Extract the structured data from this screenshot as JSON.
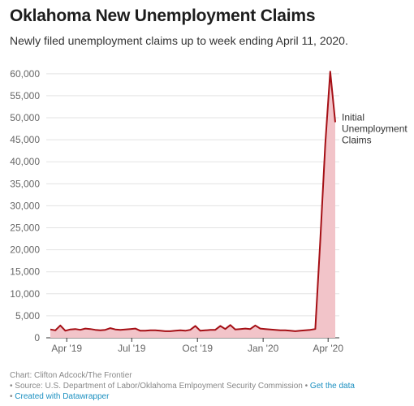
{
  "header": {
    "title": "Oklahoma New Unemployment Claims",
    "subtitle": "Newly filed unemployment claims up to week ending April 11, 2020."
  },
  "chart_data": {
    "type": "area",
    "title": "Oklahoma New Unemployment Claims",
    "subtitle": "Newly filed unemployment claims up to week ending April 11, 2020.",
    "xlabel": "",
    "ylabel": "",
    "ylim": [
      0,
      62000
    ],
    "yticks": [
      0,
      5000,
      10000,
      15000,
      20000,
      25000,
      30000,
      35000,
      40000,
      45000,
      50000,
      55000,
      60000
    ],
    "ytick_labels": [
      "0",
      "5,000",
      "10,000",
      "15,000",
      "20,000",
      "25,000",
      "30,000",
      "35,000",
      "40,000",
      "45,000",
      "50,000",
      "55,000",
      "60,000"
    ],
    "xticks": [
      {
        "date": "2019-04-01",
        "label": "Apr '19"
      },
      {
        "date": "2019-07-01",
        "label": "Jul '19"
      },
      {
        "date": "2019-10-01",
        "label": "Oct '19"
      },
      {
        "date": "2020-01-01",
        "label": "Jan '20"
      },
      {
        "date": "2020-04-01",
        "label": "Apr '20"
      }
    ],
    "grid": true,
    "series": [
      {
        "name": "Initial Unemployment Claims",
        "color": "#a50f15",
        "fill": "#f2c4c9",
        "x": [
          "2019-03-09",
          "2019-03-16",
          "2019-03-23",
          "2019-03-30",
          "2019-04-06",
          "2019-04-13",
          "2019-04-20",
          "2019-04-27",
          "2019-05-04",
          "2019-05-11",
          "2019-05-18",
          "2019-05-25",
          "2019-06-01",
          "2019-06-08",
          "2019-06-15",
          "2019-06-22",
          "2019-06-29",
          "2019-07-06",
          "2019-07-13",
          "2019-07-20",
          "2019-07-27",
          "2019-08-03",
          "2019-08-10",
          "2019-08-17",
          "2019-08-24",
          "2019-08-31",
          "2019-09-07",
          "2019-09-14",
          "2019-09-21",
          "2019-09-28",
          "2019-10-05",
          "2019-10-12",
          "2019-10-19",
          "2019-10-26",
          "2019-11-02",
          "2019-11-09",
          "2019-11-16",
          "2019-11-23",
          "2019-11-30",
          "2019-12-07",
          "2019-12-14",
          "2019-12-21",
          "2019-12-28",
          "2020-01-04",
          "2020-01-11",
          "2020-01-18",
          "2020-01-25",
          "2020-02-01",
          "2020-02-08",
          "2020-02-15",
          "2020-02-22",
          "2020-02-29",
          "2020-03-07",
          "2020-03-14",
          "2020-03-21",
          "2020-03-28",
          "2020-04-04",
          "2020-04-11"
        ],
        "values": [
          1900,
          1700,
          2800,
          1600,
          1900,
          2000,
          1800,
          2100,
          2000,
          1800,
          1700,
          1800,
          2200,
          1900,
          1800,
          1900,
          2000,
          2100,
          1600,
          1600,
          1700,
          1700,
          1600,
          1500,
          1500,
          1600,
          1700,
          1600,
          1800,
          2700,
          1600,
          1700,
          1800,
          1800,
          2700,
          2000,
          2900,
          1900,
          2000,
          2100,
          2000,
          2800,
          2100,
          2000,
          1900,
          1800,
          1700,
          1700,
          1600,
          1500,
          1600,
          1700,
          1800,
          2000,
          22000,
          44000,
          60500,
          49000
        ]
      }
    ],
    "annotations": [
      {
        "text": [
          "Initial",
          "Unemployment",
          "Claims"
        ],
        "target": "series.0.last"
      }
    ]
  },
  "footer": {
    "credit": "Chart: Clifton Adcock/The Frontier",
    "source_prefix": "• Source: U.S. Department of Labor/Oklahoma Emlpoyment Security Commission • ",
    "get_data": "Get the data",
    "created_prefix": "• ",
    "created_with": "Created with Datawrapper"
  }
}
